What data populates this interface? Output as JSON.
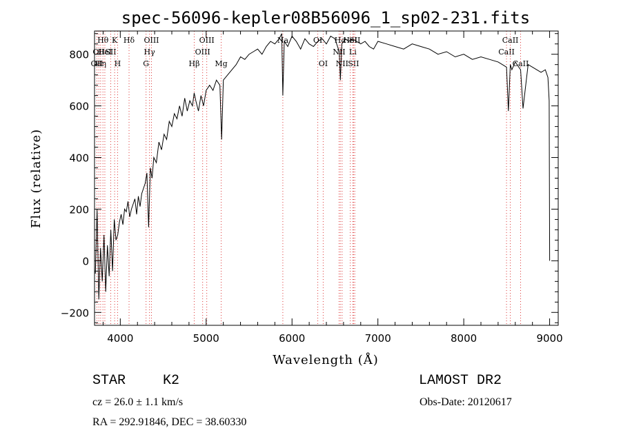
{
  "chart_data": {
    "type": "line",
    "title": "spec-56096-kepler08B56096_1_sp02-231.fits",
    "xlabel": "Wavelength (Å)",
    "ylabel": "Flux (relative)",
    "xlim": [
      3700,
      9100
    ],
    "ylim": [
      -250,
      890
    ],
    "x_ticks": [
      4000,
      5000,
      6000,
      7000,
      8000,
      9000
    ],
    "y_ticks": [
      -200,
      0,
      200,
      400,
      600,
      800
    ],
    "grid": false,
    "legend": "none",
    "series": [
      {
        "x": [
          3710,
          3730,
          3750,
          3770,
          3790,
          3810,
          3830,
          3850,
          3870,
          3890,
          3910,
          3930,
          3950,
          3970,
          3990,
          4010,
          4030,
          4050,
          4070,
          4090,
          4110,
          4130,
          4150,
          4170,
          4190,
          4210,
          4230,
          4250,
          4270,
          4290,
          4310,
          4330,
          4350,
          4370,
          4390,
          4420,
          4450,
          4480,
          4510,
          4540,
          4570,
          4600,
          4630,
          4660,
          4690,
          4720,
          4750,
          4780,
          4810,
          4840,
          4860,
          4880,
          4910,
          4940,
          4970,
          5000,
          5040,
          5080,
          5120,
          5160,
          5180,
          5200,
          5250,
          5300,
          5350,
          5400,
          5450,
          5500,
          5550,
          5600,
          5650,
          5700,
          5750,
          5800,
          5850,
          5880,
          5893,
          5910,
          5950,
          6000,
          6050,
          6100,
          6150,
          6200,
          6250,
          6300,
          6350,
          6400,
          6450,
          6500,
          6550,
          6563,
          6580,
          6620,
          6660,
          6700,
          6750,
          6800,
          6850,
          6900,
          6950,
          7000,
          7100,
          7200,
          7300,
          7400,
          7500,
          7600,
          7700,
          7800,
          7900,
          8000,
          8100,
          8200,
          8300,
          8400,
          8450,
          8498,
          8520,
          8542,
          8560,
          8600,
          8640,
          8662,
          8690,
          8750,
          8800,
          8850,
          8900,
          8950,
          8980,
          8995,
          9000
        ],
        "y": [
          -50,
          200,
          -150,
          50,
          -80,
          100,
          -120,
          60,
          -60,
          120,
          -40,
          160,
          80,
          100,
          150,
          180,
          140,
          200,
          190,
          230,
          170,
          200,
          220,
          240,
          180,
          250,
          210,
          260,
          280,
          300,
          340,
          130,
          360,
          320,
          400,
          380,
          460,
          430,
          490,
          470,
          540,
          520,
          570,
          550,
          600,
          560,
          630,
          580,
          620,
          600,
          650,
          620,
          580,
          640,
          600,
          660,
          680,
          660,
          700,
          680,
          470,
          700,
          720,
          740,
          760,
          790,
          780,
          800,
          810,
          820,
          800,
          830,
          850,
          840,
          860,
          880,
          640,
          850,
          830,
          870,
          850,
          820,
          860,
          840,
          830,
          850,
          860,
          840,
          870,
          860,
          810,
          700,
          840,
          860,
          850,
          860,
          850,
          840,
          850,
          830,
          820,
          850,
          840,
          830,
          820,
          840,
          830,
          820,
          800,
          810,
          790,
          800,
          780,
          790,
          780,
          770,
          760,
          750,
          580,
          760,
          740,
          770,
          750,
          740,
          590,
          760,
          750,
          740,
          730,
          740,
          710,
          620,
          0
        ]
      }
    ],
    "line_markers": [
      {
        "wl": 3727,
        "name": "OII",
        "row": 2
      },
      {
        "wl": 3750,
        "name": "OII",
        "row": 1
      },
      {
        "wl": 3771,
        "name": "Hη",
        "row": 2
      },
      {
        "wl": 3798,
        "name": "Hθ",
        "row": 0
      },
      {
        "wl": 3820,
        "name": "HeI",
        "row": 1
      },
      {
        "wl": 3889,
        "name": "SII",
        "row": 1
      },
      {
        "wl": 3934,
        "name": "K",
        "row": 0
      },
      {
        "wl": 3969,
        "name": "H",
        "row": 2
      },
      {
        "wl": 4102,
        "name": "Hδ",
        "row": 0
      },
      {
        "wl": 4300,
        "name": "G",
        "row": 2
      },
      {
        "wl": 4340,
        "name": "Hγ",
        "row": 1
      },
      {
        "wl": 4363,
        "name": "OIII",
        "row": 0
      },
      {
        "wl": 4861,
        "name": "Hβ",
        "row": 2
      },
      {
        "wl": 4959,
        "name": "OIII",
        "row": 1
      },
      {
        "wl": 5007,
        "name": "OIII",
        "row": 0
      },
      {
        "wl": 5175,
        "name": "Mg",
        "row": 2
      },
      {
        "wl": 5893,
        "name": "Na",
        "row": 0
      },
      {
        "wl": 6300,
        "name": "OI",
        "row": 0
      },
      {
        "wl": 6363,
        "name": "OI",
        "row": 2
      },
      {
        "wl": 6548,
        "name": "NII",
        "row": 1
      },
      {
        "wl": 6563,
        "name": "Hα",
        "row": 0
      },
      {
        "wl": 6583,
        "name": "NII",
        "row": 2
      },
      {
        "wl": 6678,
        "name": "HeI",
        "row": 0
      },
      {
        "wl": 6708,
        "name": "Li",
        "row": 1
      },
      {
        "wl": 6716,
        "name": "SII",
        "row": 2
      },
      {
        "wl": 6731,
        "name": "SII",
        "row": 0
      },
      {
        "wl": 8498,
        "name": "CaII",
        "row": 1
      },
      {
        "wl": 8542,
        "name": "CaII",
        "row": 0
      },
      {
        "wl": 8662,
        "name": "CaII",
        "row": 2
      }
    ]
  },
  "info": {
    "object_class": "STAR",
    "subclass": "K2",
    "survey": "LAMOST DR2",
    "cz": "cz = 26.0 ± 1.1 km/s",
    "obs_date": "Obs-Date: 20120617",
    "coords": "RA = 292.91846, DEC =  38.60330"
  }
}
